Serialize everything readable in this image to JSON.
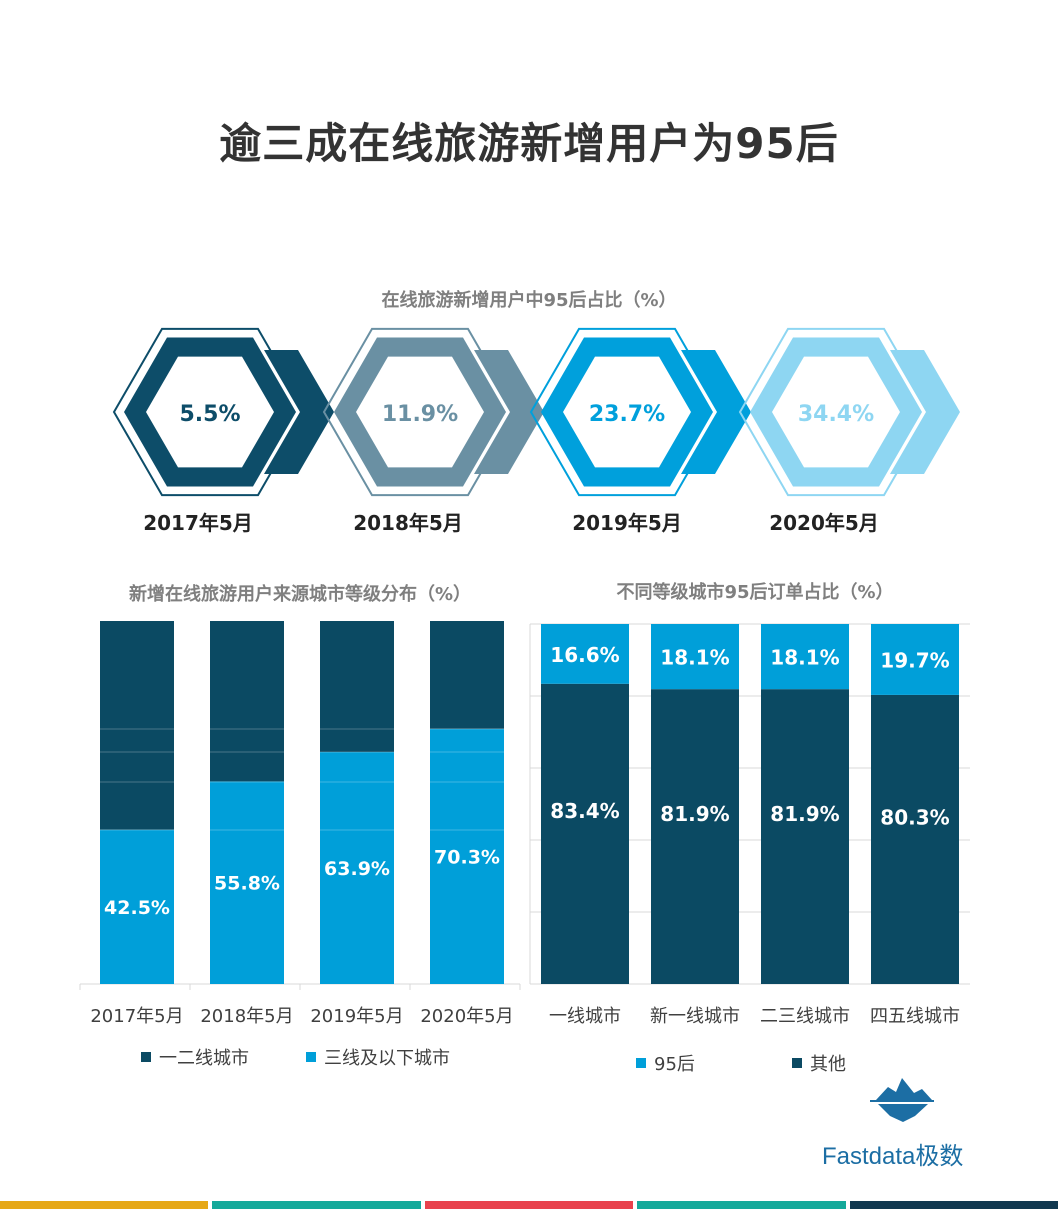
{
  "title": "逾三成在线旅游新增用户为95后",
  "hex_section": {
    "title": "在线旅游新增用户中95后占比（%）",
    "items": [
      {
        "period": "2017年5月",
        "value_label": "5.5%",
        "value": 5.5,
        "color": "#0d4d69",
        "text_color": "#0d4d69"
      },
      {
        "period": "2018年5月",
        "value_label": "11.9%",
        "value": 11.9,
        "color": "#6a90a3",
        "text_color": "#6a90a3"
      },
      {
        "period": "2019年5月",
        "value_label": "23.7%",
        "value": 23.7,
        "color": "#00a0dc",
        "text_color": "#00a0dc"
      },
      {
        "period": "2020年5月",
        "value_label": "34.4%",
        "value": 34.4,
        "color": "#8ed6f2",
        "text_color": "#8ed6f2"
      }
    ]
  },
  "chart_data": [
    {
      "type": "bar",
      "stacked": true,
      "title": "新增在线旅游用户来源城市等级分布（%）",
      "categories": [
        "2017年5月",
        "2018年5月",
        "2019年5月",
        "2020年5月"
      ],
      "series": [
        {
          "name": "一二线城市",
          "values": [
            57.5,
            44.2,
            36.1,
            29.7
          ],
          "color": "#0b4a63"
        },
        {
          "name": "三线及以下城市",
          "values": [
            42.5,
            55.8,
            63.9,
            70.3
          ],
          "color": "#009fd9"
        }
      ],
      "data_labels": [
        "42.5%",
        "55.8%",
        "63.9%",
        "70.3%"
      ],
      "ylim": [
        0,
        100
      ],
      "legend": "bottom"
    },
    {
      "type": "bar",
      "stacked": true,
      "title": "不同等级城市95后订单占比（%）",
      "categories": [
        "一线城市",
        "新一线城市",
        "二三线城市",
        "四五线城市"
      ],
      "series": [
        {
          "name": "95后",
          "values": [
            16.6,
            18.1,
            18.1,
            19.7
          ],
          "color": "#009fd9"
        },
        {
          "name": "其他",
          "values": [
            83.4,
            81.9,
            81.9,
            80.3
          ],
          "color": "#0b4a63"
        }
      ],
      "data_labels_top": [
        "16.6%",
        "18.1%",
        "18.1%",
        "19.7%"
      ],
      "data_labels_bottom": [
        "83.4%",
        "81.9%",
        "81.9%",
        "80.3%"
      ],
      "ylim": [
        0,
        100
      ],
      "grid": true,
      "legend": "bottom"
    }
  ],
  "brand": {
    "name": "Fastdata极数",
    "color": "#1c6ea4"
  },
  "bottom_stripe_colors": [
    "#e6a817",
    "#14a99a",
    "#e8424d",
    "#14a99a",
    "#10384f"
  ]
}
